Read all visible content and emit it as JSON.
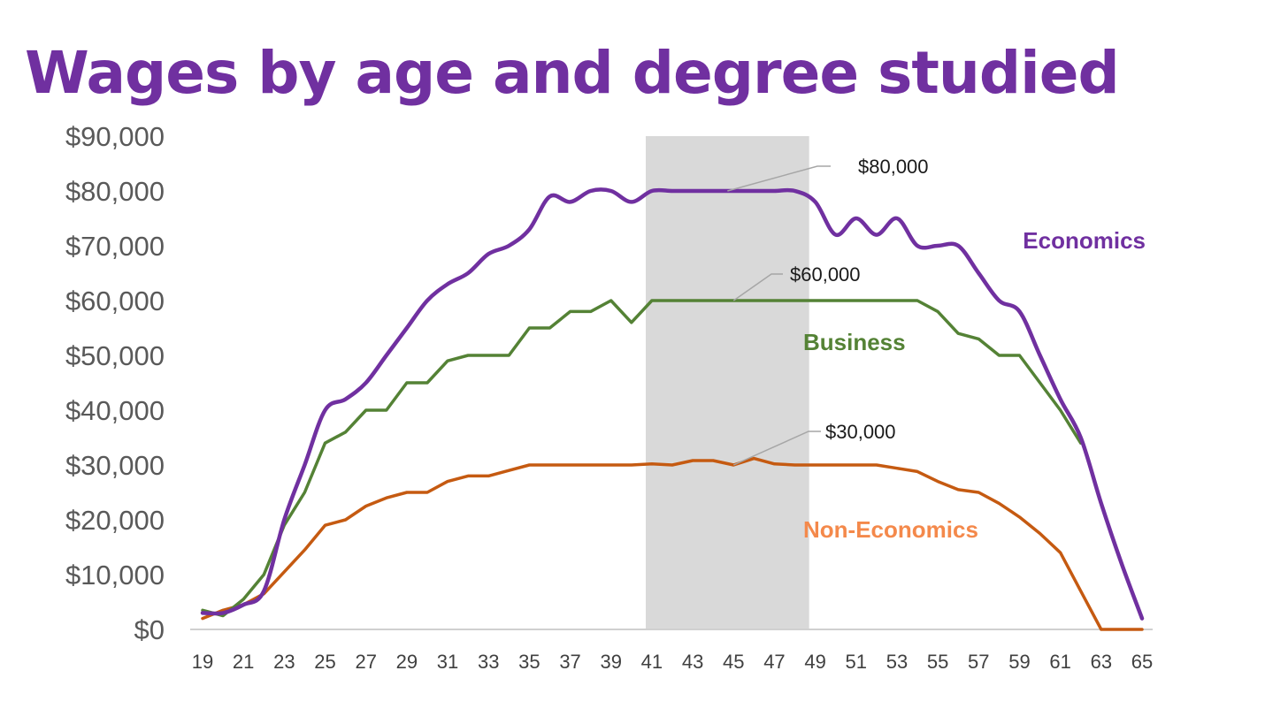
{
  "chart_data": {
    "type": "line",
    "title": "Wages by age and degree studied",
    "xlabel": "",
    "ylabel": "",
    "x": [
      19,
      20,
      21,
      22,
      23,
      24,
      25,
      26,
      27,
      28,
      29,
      30,
      31,
      32,
      33,
      34,
      35,
      36,
      37,
      38,
      39,
      40,
      41,
      42,
      43,
      44,
      45,
      46,
      47,
      48,
      49,
      50,
      51,
      52,
      53,
      54,
      55,
      56,
      57,
      58,
      59,
      60,
      61,
      62,
      63,
      64,
      65
    ],
    "x_tick_labels": [
      "19",
      "21",
      "23",
      "25",
      "27",
      "29",
      "31",
      "33",
      "35",
      "37",
      "39",
      "41",
      "43",
      "45",
      "47",
      "49",
      "51",
      "53",
      "55",
      "57",
      "59",
      "61",
      "63",
      "65"
    ],
    "y_tick_labels": [
      "$0",
      "$10,000",
      "$20,000",
      "$30,000",
      "$40,000",
      "$50,000",
      "$60,000",
      "$70,000",
      "$80,000",
      "$90,000"
    ],
    "ylim": [
      0,
      90000
    ],
    "xlim": [
      19,
      65
    ],
    "grid": false,
    "legend": "inline labels",
    "highlight_band": {
      "from": 40.7,
      "to": 48.7,
      "color": "#d9d9d9"
    },
    "series": [
      {
        "name": "Economics",
        "color": "#7030a0",
        "values": [
          3000,
          3000,
          4500,
          7000,
          20000,
          30000,
          40000,
          42000,
          45000,
          50000,
          55000,
          60000,
          63000,
          65000,
          68500,
          70000,
          73000,
          79000,
          78000,
          80000,
          80000,
          78000,
          80000,
          80000,
          80000,
          80000,
          80000,
          80000,
          80000,
          80000,
          78000,
          72000,
          75000,
          72000,
          75000,
          70000,
          70000,
          70000,
          65000,
          60000,
          58000,
          50000,
          42000,
          35000,
          23000,
          12000,
          2000
        ]
      },
      {
        "name": "Business",
        "color": "#548235",
        "values": [
          3500,
          2500,
          5500,
          10000,
          19000,
          25000,
          34000,
          36000,
          40000,
          40000,
          45000,
          45000,
          49000,
          50000,
          50000,
          50000,
          55000,
          55000,
          58000,
          58000,
          60000,
          56000,
          60000,
          60000,
          60000,
          60000,
          60000,
          60000,
          60000,
          60000,
          60000,
          60000,
          60000,
          60000,
          60000,
          60000,
          58000,
          54000,
          53000,
          50000,
          50000,
          45000,
          40000,
          34000,
          null,
          null,
          null
        ]
      },
      {
        "name": "Non-Economics",
        "color": "#c55a11",
        "label_color": "#f4894b",
        "values": [
          2000,
          3500,
          4500,
          6500,
          10500,
          14500,
          19000,
          20000,
          22500,
          24000,
          25000,
          25000,
          27000,
          28000,
          28000,
          29000,
          30000,
          30000,
          30000,
          30000,
          30000,
          30000,
          30200,
          30000,
          30800,
          30800,
          30000,
          31200,
          30200,
          30000,
          30000,
          30000,
          30000,
          30000,
          29400,
          28800,
          27000,
          25500,
          25000,
          23000,
          20500,
          17500,
          14000,
          7000,
          0,
          0,
          0
        ]
      }
    ],
    "annotations": [
      {
        "text": "$80,000",
        "x": 44.7,
        "y": 80000
      },
      {
        "text": "$60,000",
        "x": 45,
        "y": 60000
      },
      {
        "text": "$30,000",
        "x": 45,
        "y": 30000
      }
    ]
  }
}
